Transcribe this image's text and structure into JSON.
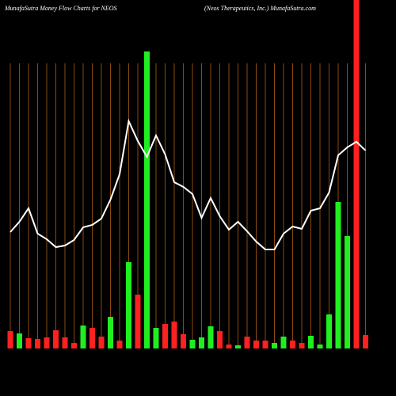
{
  "chart_data": {
    "type": "bar",
    "title": "MunafaSutra  Money Flow  Charts for NEOS",
    "subtitle": "(Neos Therapeutics,  Inc.) MunafaSutra.com",
    "categories": [
      null,
      null,
      null,
      null,
      null,
      null,
      null,
      null,
      null,
      null,
      null,
      null,
      null,
      null,
      null,
      null,
      null,
      null,
      null,
      null,
      null,
      null,
      null,
      null,
      null,
      null,
      null,
      null,
      null,
      null,
      null,
      null,
      null,
      null,
      null,
      null,
      null,
      null,
      null,
      null
    ],
    "ylim": [
      0,
      440
    ],
    "series": [
      {
        "type": "bar",
        "values": [
          22,
          19,
          13,
          12,
          14,
          23,
          14,
          7,
          29,
          26,
          15,
          40,
          10,
          109,
          68,
          375,
          26,
          31,
          34,
          18,
          11,
          14,
          28,
          22,
          5,
          4,
          15,
          10,
          10,
          7,
          15,
          10,
          7,
          16,
          5,
          43,
          185,
          142,
          440,
          17
        ],
        "colors": [
          "#ff2020",
          "#20ee20",
          "#ff2020",
          "#ff2020",
          "#ff2020",
          "#ff2020",
          "#ff2020",
          "#ff2020",
          "#20ee20",
          "#ff2020",
          "#ff2020",
          "#20ee20",
          "#ff2020",
          "#20ee20",
          "#ff2020",
          "#20ee20",
          "#20ee20",
          "#ff2020",
          "#ff2020",
          "#ff2020",
          "#20ee20",
          "#20ee20",
          "#20ee20",
          "#ff2020",
          "#ff2020",
          "#20ee20",
          "#ff2020",
          "#ff2020",
          "#ff2020",
          "#20ee20",
          "#20ee20",
          "#ff2020",
          "#ff2020",
          "#20ee20",
          "#20ee20",
          "#20ee20",
          "#20ee20",
          "#20ee20",
          "#ff2020",
          "#ff2020"
        ]
      },
      {
        "type": "line",
        "color": "#ffffff",
        "values": [
          147,
          160,
          177,
          145,
          138,
          128,
          130,
          137,
          153,
          156,
          164,
          188,
          220,
          287,
          262,
          242,
          269,
          245,
          210,
          204,
          195,
          165,
          190,
          167,
          150,
          160,
          148,
          135,
          125,
          125,
          145,
          154,
          151,
          174,
          177,
          197,
          244,
          254,
          261,
          250
        ]
      }
    ],
    "gridline_color": "#8a4a10"
  }
}
